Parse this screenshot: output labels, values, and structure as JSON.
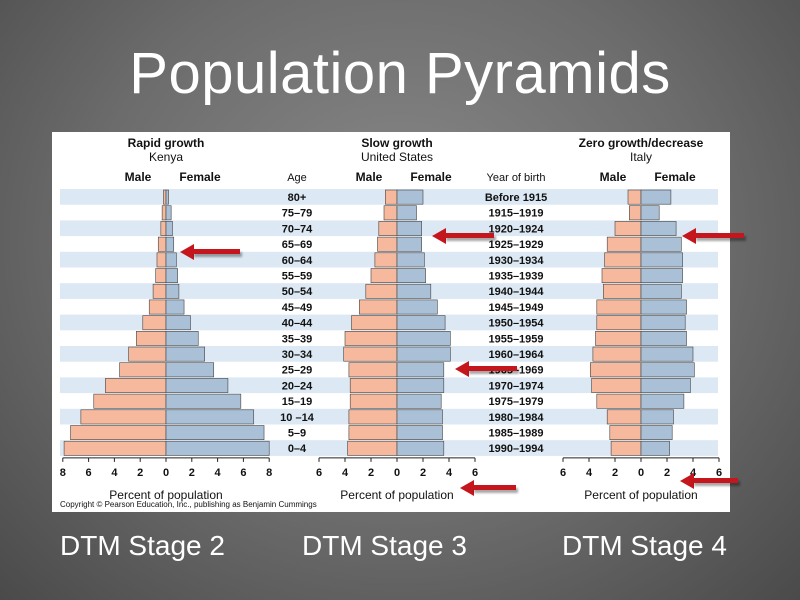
{
  "slide": {
    "title": "Population Pyramids",
    "captions": [
      "DTM Stage 2",
      "DTM Stage 3",
      "DTM Stage 4"
    ],
    "arrow_color": "#c4161c"
  },
  "figure": {
    "copyright": "Copyright © Pearson Education, Inc., publishing as Benjamin Cummings",
    "age_header": "Age",
    "year_header": "Year of birth",
    "male_label": "Male",
    "female_label": "Female",
    "male_color": "#f6b99d",
    "female_color": "#a9c0d6",
    "band_color": "#dce8f3"
  },
  "chart_data": [
    {
      "type": "bar",
      "orientation": "horizontal-pyramid",
      "title": "Rapid growth",
      "subtitle": "Kenya",
      "xlabel": "Percent of population",
      "xlim": [
        -8,
        8
      ],
      "xticks": [
        "8",
        "6",
        "4",
        "2",
        "0",
        "2",
        "4",
        "6",
        "8"
      ],
      "categories": [
        "80+",
        "75–79",
        "70–74",
        "65–69",
        "60–64",
        "55–59",
        "50–54",
        "45–49",
        "40–44",
        "35–39",
        "30–34",
        "25–29",
        "20–24",
        "15–19",
        "10 –14",
        "5–9",
        "0–4"
      ],
      "series": [
        {
          "name": "Male",
          "values": [
            0.2,
            0.3,
            0.4,
            0.6,
            0.7,
            0.8,
            1.0,
            1.3,
            1.8,
            2.3,
            2.9,
            3.6,
            4.7,
            5.6,
            6.6,
            7.4,
            7.9
          ]
        },
        {
          "name": "Female",
          "values": [
            0.2,
            0.4,
            0.5,
            0.6,
            0.8,
            0.9,
            1.0,
            1.4,
            1.9,
            2.5,
            3.0,
            3.7,
            4.8,
            5.8,
            6.8,
            7.6,
            8.0
          ]
        }
      ]
    },
    {
      "type": "bar",
      "orientation": "horizontal-pyramid",
      "title": "Slow growth",
      "subtitle": "United States",
      "xlabel": "Percent of population",
      "xlim": [
        -6,
        6
      ],
      "xticks": [
        "6",
        "4",
        "2",
        "0",
        "2",
        "4",
        "6"
      ],
      "categories": [
        "Before 1915",
        "1915–1919",
        "1920–1924",
        "1925–1929",
        "1930–1934",
        "1935–1939",
        "1940–1944",
        "1945–1949",
        "1950–1954",
        "1955–1959",
        "1960–1964",
        "1965–1969",
        "1970–1974",
        "1975–1979",
        "1980–1984",
        "1985–1989",
        "1990–1994"
      ],
      "series": [
        {
          "name": "Male",
          "values": [
            0.9,
            1.0,
            1.4,
            1.5,
            1.7,
            2.0,
            2.4,
            2.9,
            3.5,
            4.0,
            4.1,
            3.7,
            3.6,
            3.6,
            3.7,
            3.7,
            3.8
          ]
        },
        {
          "name": "Female",
          "values": [
            2.0,
            1.5,
            1.9,
            1.9,
            2.1,
            2.2,
            2.6,
            3.1,
            3.7,
            4.1,
            4.1,
            3.6,
            3.6,
            3.4,
            3.5,
            3.5,
            3.6
          ]
        }
      ]
    },
    {
      "type": "bar",
      "orientation": "horizontal-pyramid",
      "title": "Zero growth/decrease",
      "subtitle": "Italy",
      "xlabel": "Percent of population",
      "xlim": [
        -6,
        6
      ],
      "xticks": [
        "6",
        "4",
        "2",
        "0",
        "2",
        "4",
        "6"
      ],
      "categories": [
        "80+",
        "75–79",
        "70–74",
        "65–69",
        "60–64",
        "55–59",
        "50–54",
        "45–49",
        "40–44",
        "35–39",
        "30–34",
        "25–29",
        "20–24",
        "15–19",
        "10–14",
        "5–9",
        "0–4"
      ],
      "series": [
        {
          "name": "Male",
          "values": [
            1.0,
            0.9,
            2.0,
            2.6,
            2.8,
            3.0,
            2.9,
            3.4,
            3.4,
            3.5,
            3.7,
            3.9,
            3.8,
            3.4,
            2.6,
            2.4,
            2.3
          ]
        },
        {
          "name": "Female",
          "values": [
            2.3,
            1.4,
            2.7,
            3.1,
            3.2,
            3.2,
            3.1,
            3.5,
            3.4,
            3.5,
            4.0,
            4.1,
            3.8,
            3.3,
            2.5,
            2.4,
            2.2
          ]
        }
      ]
    }
  ]
}
